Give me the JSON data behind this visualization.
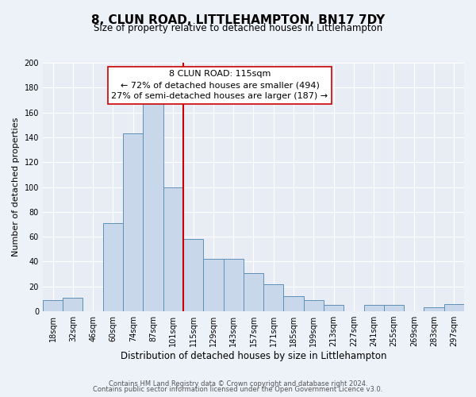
{
  "title": "8, CLUN ROAD, LITTLEHAMPTON, BN17 7DY",
  "subtitle": "Size of property relative to detached houses in Littlehampton",
  "xlabel": "Distribution of detached houses by size in Littlehampton",
  "ylabel": "Number of detached properties",
  "bar_color": "#c8d8ea",
  "bar_edge_color": "#6090b8",
  "background_color": "#e8edf5",
  "grid_color": "#ffffff",
  "fig_bg_color": "#edf1f8",
  "categories": [
    "18sqm",
    "32sqm",
    "46sqm",
    "60sqm",
    "74sqm",
    "87sqm",
    "101sqm",
    "115sqm",
    "129sqm",
    "143sqm",
    "157sqm",
    "171sqm",
    "185sqm",
    "199sqm",
    "213sqm",
    "227sqm",
    "241sqm",
    "255sqm",
    "269sqm",
    "283sqm",
    "297sqm"
  ],
  "values": [
    9,
    11,
    0,
    71,
    143,
    168,
    100,
    58,
    42,
    42,
    31,
    22,
    12,
    9,
    5,
    0,
    5,
    5,
    0,
    3,
    6
  ],
  "ylim": [
    0,
    200
  ],
  "yticks": [
    0,
    20,
    40,
    60,
    80,
    100,
    120,
    140,
    160,
    180,
    200
  ],
  "vline_index": 7,
  "property_label": "8 CLUN ROAD: 115sqm",
  "annotation_line1": "← 72% of detached houses are smaller (494)",
  "annotation_line2": "27% of semi-detached houses are larger (187) →",
  "vline_color": "#cc0000",
  "annotation_box_edge": "#cc0000",
  "footer_line1": "Contains HM Land Registry data © Crown copyright and database right 2024.",
  "footer_line2": "Contains public sector information licensed under the Open Government Licence v3.0.",
  "title_fontsize": 11,
  "subtitle_fontsize": 8.5,
  "xlabel_fontsize": 8.5,
  "ylabel_fontsize": 8,
  "tick_fontsize": 7,
  "footer_fontsize": 6,
  "annotation_fontsize": 8
}
